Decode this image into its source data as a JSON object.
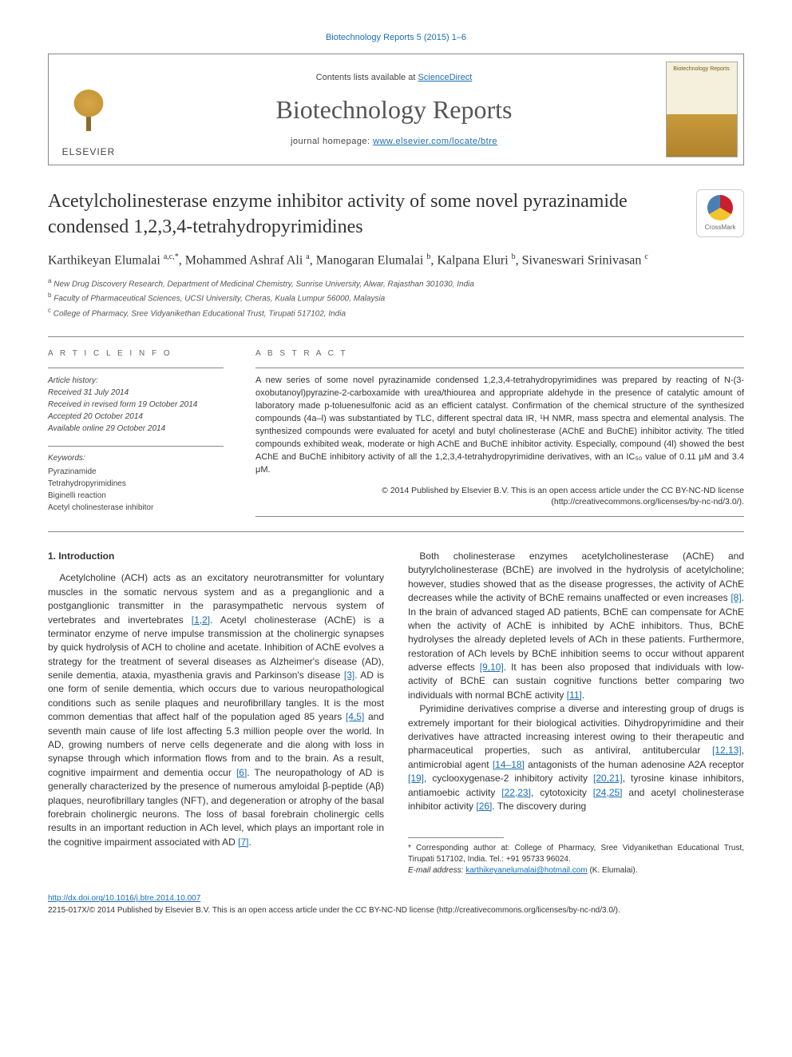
{
  "top_link": "Biotechnology Reports 5 (2015) 1–6",
  "header": {
    "contents_prefix": "Contents lists available at ",
    "contents_link": "ScienceDirect",
    "journal": "Biotechnology Reports",
    "homepage_prefix": "journal homepage: ",
    "homepage_url": "www.elsevier.com/locate/btre",
    "publisher": "ELSEVIER",
    "cover_label": "Biotechnology Reports"
  },
  "crossmark": "CrossMark",
  "title": "Acetylcholinesterase enzyme inhibitor activity of some novel pyrazinamide condensed 1,2,3,4-tetrahydropyrimidines",
  "authors_html": "Karthikeyan Elumalai <sup>a,c,*</sup>, Mohammed Ashraf Ali <sup>a</sup>, Manogaran Elumalai <sup>b</sup>, Kalpana Eluri <sup>b</sup>, Sivaneswari Srinivasan <sup>c</sup>",
  "affiliations": [
    "a New Drug Discovery Research, Department of Medicinal Chemistry, Sunrise University, Alwar, Rajasthan 301030, India",
    "b Faculty of Pharmaceutical Sciences, UCSI University, Cheras, Kuala Lumpur 56000, Malaysia",
    "c College of Pharmacy, Sree Vidyanikethan Educational Trust, Tirupati 517102, India"
  ],
  "info": {
    "heading": "A R T I C L E  I N F O",
    "history_label": "Article history:",
    "history": [
      "Received 31 July 2014",
      "Received in revised form 19 October 2014",
      "Accepted 20 October 2014",
      "Available online 29 October 2014"
    ],
    "keywords_label": "Keywords:",
    "keywords": [
      "Pyrazinamide",
      "Tetrahydropyrimidines",
      "Biginelli reaction",
      "Acetyl cholinesterase inhibitor"
    ]
  },
  "abstract": {
    "heading": "A B S T R A C T",
    "text": "A new series of some novel pyrazinamide condensed 1,2,3,4-tetrahydropyrimidines was prepared by reacting of N-(3-oxobutanoyl)pyrazine-2-carboxamide with urea/thiourea and appropriate aldehyde in the presence of catalytic amount of laboratory made p-toluenesulfonic acid as an efficient catalyst. Confirmation of the chemical structure of the synthesized compounds (4a–l) was substantiated by TLC, different spectral data IR, ¹H NMR, mass spectra and elemental analysis. The synthesized compounds were evaluated for acetyl and butyl cholinesterase (AChE and BuChE) inhibitor activity. The titled compounds exhibited weak, moderate or high AChE and BuChE inhibitor activity. Especially, compound (4l) showed the best AChE and BuChE inhibitory activity of all the 1,2,3,4-tetrahydropyrimidine derivatives, with an IC₅₀ value of 0.11 μM and 3.4 μM.",
    "copyright": "© 2014 Published by Elsevier B.V. This is an open access article under the CC BY-NC-ND license (http://creativecommons.org/licenses/by-nc-nd/3.0/)."
  },
  "section1_heading": "1. Introduction",
  "paragraphs": {
    "p1a": "Acetylcholine (ACH) acts as an excitatory neurotransmitter for voluntary muscles in the somatic nervous system and as a preganglionic and a postganglionic transmitter in the parasympathetic nervous system of vertebrates and invertebrates ",
    "p1_ref1": "[1,2]",
    "p1b": ". Acetyl cholinesterase (AChE) is a terminator enzyme of nerve impulse transmission at the cholinergic synapses by quick hydrolysis of ACH to choline and acetate. Inhibition of AChE evolves a strategy for the treatment of several diseases as Alzheimer's disease (AD), senile dementia, ataxia, myasthenia gravis and Parkinson's disease ",
    "p1_ref2": "[3]",
    "p1c": ". AD is one form of senile dementia, which occurs due to various neuropathological conditions such as senile plaques and neurofibrillary tangles. It is the most common dementias that affect half of the population aged 85 years ",
    "p1_ref3": "[4,5]",
    "p1d": " and seventh main cause of life lost affecting 5.3 million people over the world. In AD, growing numbers of nerve cells degenerate and die along with loss in synapse through which information flows from and to the brain. As a result, cognitive impairment and dementia occur ",
    "p1_ref4": "[6]",
    "p1e": ". The neuropathology of AD is generally characterized by the presence of numerous amyloidal β-peptide (Aβ) plaques, neurofibrillary ",
    "p1f": "tangles (NFT), and degeneration or atrophy of the basal forebrain cholinergic neurons. The loss of basal forebrain cholinergic cells results in an important reduction in ACh level, which plays an important role in the cognitive impairment associated with AD ",
    "p1_ref5": "[7]",
    "p1g": ".",
    "p2a": "Both cholinesterase enzymes acetylcholinesterase (AChE) and butyrylcholinesterase (BChE) are involved in the hydrolysis of acetylcholine; however, studies showed that as the disease progresses, the activity of AChE decreases while the activity of BChE remains unaffected or even increases ",
    "p2_ref1": "[8]",
    "p2b": ". In the brain of advanced staged AD patients, BChE can compensate for AChE when the activity of AChE is inhibited by AChE inhibitors. Thus, BChE hydrolyses the already depleted levels of ACh in these patients. Furthermore, restoration of ACh levels by BChE inhibition seems to occur without apparent adverse effects ",
    "p2_ref2": "[9,10]",
    "p2c": ". It has been also proposed that individuals with low-activity of BChE can sustain cognitive functions better comparing two individuals with normal BChE activity ",
    "p2_ref3": "[11]",
    "p2d": ".",
    "p3a": "Pyrimidine derivatives comprise a diverse and interesting group of drugs is extremely important for their biological activities. Dihydropyrimidine and their derivatives have attracted increasing interest owing to their therapeutic and pharmaceutical properties, such as antiviral, antitubercular ",
    "p3_ref1": "[12,13]",
    "p3b": ", antimicrobial agent ",
    "p3_ref2": "[14–18]",
    "p3c": " antagonists of the human adenosine A2A receptor ",
    "p3_ref3": "[19]",
    "p3d": ", cyclooxygenase-2 inhibitory activity ",
    "p3_ref4": "[20,21]",
    "p3e": ", tyrosine kinase inhibitors, antiamoebic activity ",
    "p3_ref5": "[22,23]",
    "p3f": ", cytotoxicity ",
    "p3_ref6": "[24,25]",
    "p3g": " and acetyl cholinesterase inhibitor activity ",
    "p3_ref7": "[26]",
    "p3h": ". The discovery during"
  },
  "footnote": {
    "corr": "* Corresponding author at: College of Pharmacy, Sree Vidyanikethan Educational Trust, Tirupati 517102, India. Tel.: +91 95733 96024.",
    "email_label": "E-mail address: ",
    "email": "karthikeyanelumalai@hotmail.com",
    "email_suffix": " (K. Elumalai)."
  },
  "bottom": {
    "doi": "http://dx.doi.org/10.1016/j.btre.2014.10.007",
    "issn_line": "2215-017X/© 2014 Published by Elsevier B.V. This is an open access article under the CC BY-NC-ND license (http://creativecommons.org/licenses/by-nc-nd/3.0/)."
  },
  "colors": {
    "link": "#1a6db5",
    "text": "#333333",
    "rule": "#888888"
  }
}
